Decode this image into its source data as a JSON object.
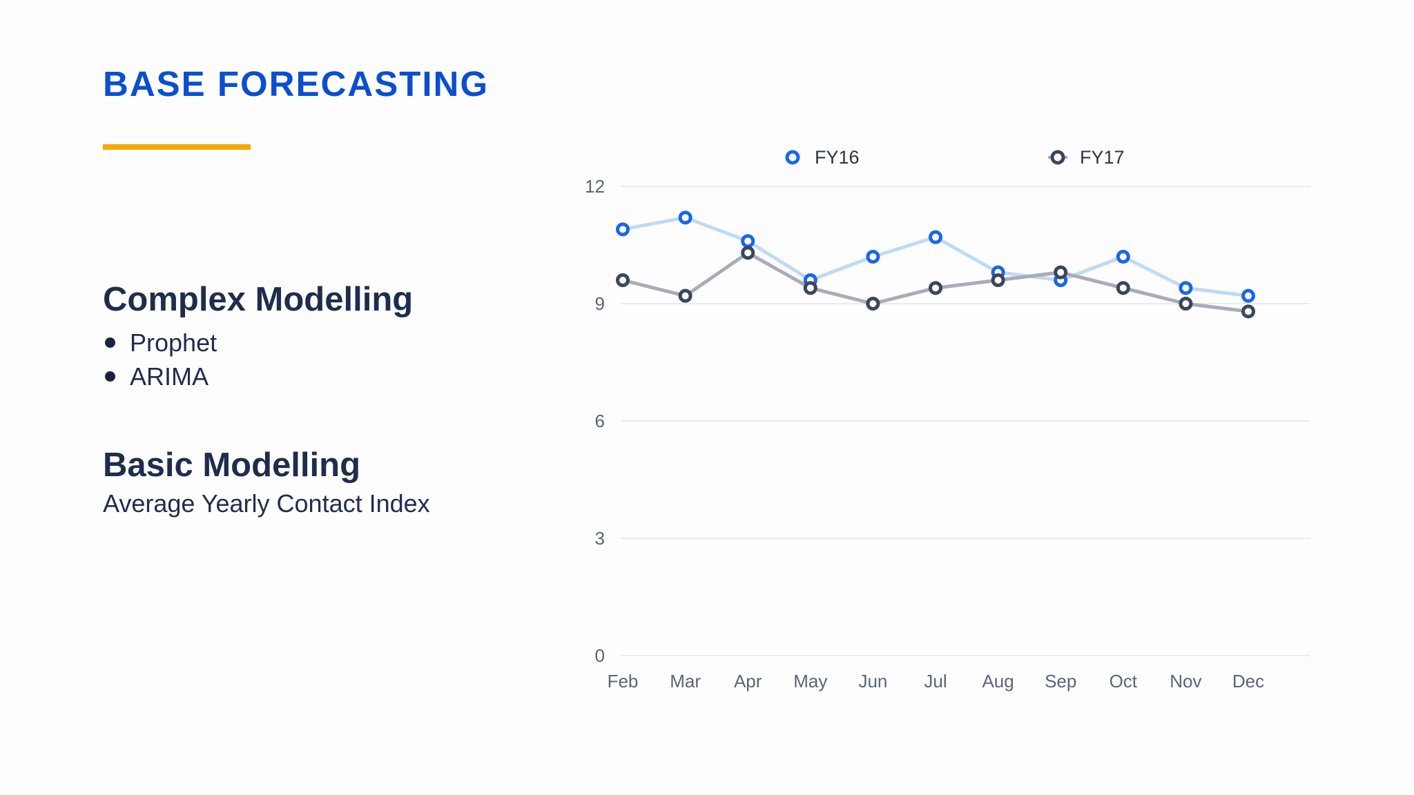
{
  "slide": {
    "title": "BASE FORECASTING",
    "accent_color": "#f2a900",
    "title_color": "#0a4fd0"
  },
  "complex": {
    "heading": "Complex Modelling",
    "items": [
      "Prophet",
      "ARIMA"
    ]
  },
  "basic": {
    "heading": "Basic Modelling",
    "subtitle": "Average Yearly Contact Index"
  },
  "chart_data": {
    "type": "line",
    "title": "",
    "xlabel": "",
    "ylabel": "",
    "categories": [
      "Feb",
      "Mar",
      "Apr",
      "May",
      "Jun",
      "Jul",
      "Aug",
      "Sep",
      "Oct",
      "Nov",
      "Dec"
    ],
    "ylim": [
      0,
      12
    ],
    "yticks": [
      0,
      3,
      6,
      9,
      12
    ],
    "grid": true,
    "legend_position": "top",
    "series": [
      {
        "name": "FY16",
        "values": [
          10.9,
          11.2,
          10.6,
          9.6,
          10.2,
          10.7,
          9.8,
          9.6,
          10.2,
          9.4,
          9.2
        ],
        "line_color": "#bfdaf6",
        "marker_color": "#1a66e8"
      },
      {
        "name": "FY17",
        "values": [
          9.6,
          9.2,
          10.3,
          9.4,
          9.0,
          9.4,
          9.6,
          9.8,
          9.4,
          9.0,
          8.8
        ],
        "line_color": "#a9abb6",
        "marker_color": "#3c4659"
      }
    ]
  }
}
